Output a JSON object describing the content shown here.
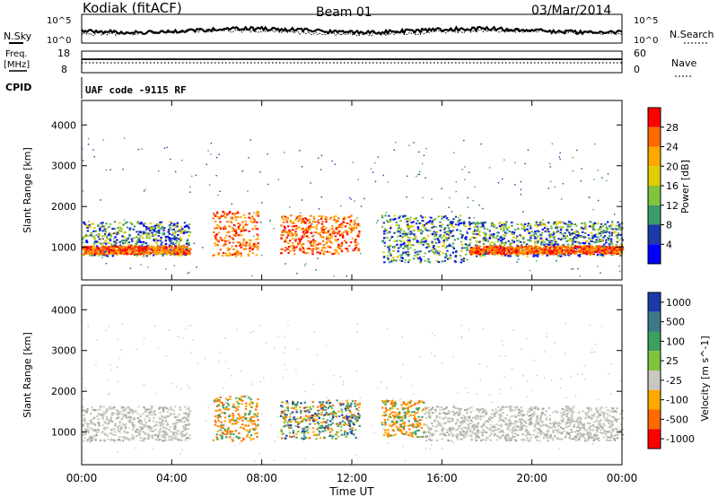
{
  "header": {
    "site": "Kodiak (fitACF)",
    "beam": "Beam 01",
    "date": "03/Mar/2014"
  },
  "top_panel": {
    "left_label": "N.Sky",
    "right_label": "N.Search",
    "left_ticks": [
      "10^5",
      "10^0"
    ],
    "right_ticks": [
      "10^5",
      "10^0"
    ]
  },
  "freq_panel": {
    "left_label_1": "Freq.",
    "left_label_2": "[MHz]",
    "right_label": "Nave",
    "left_ticks": [
      "18",
      "8"
    ],
    "right_ticks": [
      "60",
      "0"
    ]
  },
  "cpid": {
    "label": "CPID",
    "text": "UAF code -9115 RF"
  },
  "chart_data": [
    {
      "type": "heatmap",
      "ylabel": "Slant Range [km]",
      "xlabel": "Time UT",
      "x_ticks": [
        "00:00",
        "04:00",
        "08:00",
        "12:00",
        "16:00",
        "20:00",
        "00:00"
      ],
      "xlim": [
        0,
        24
      ],
      "y_ticks": [
        "1000",
        "2000",
        "3000",
        "4000"
      ],
      "ylim": [
        200,
        4600
      ],
      "colorbar": {
        "label": "Power [dB]",
        "ticks": [
          "28",
          "24",
          "20",
          "16",
          "12",
          "8",
          "4"
        ],
        "colors": [
          "#ff0000",
          "#ff6a00",
          "#ffa800",
          "#e0cc00",
          "#7fc43c",
          "#3c9a6a",
          "#1c3aa8",
          "#0000ff"
        ]
      },
      "regions": [
        {
          "t0": 0.0,
          "t1": 4.8,
          "r0": 800,
          "r1": 1650,
          "level": "mid"
        },
        {
          "t0": 0.0,
          "t1": 4.8,
          "r0": 850,
          "r1": 1050,
          "level": "high"
        },
        {
          "t0": 5.8,
          "t1": 7.8,
          "r0": 800,
          "r1": 1900,
          "level": "high"
        },
        {
          "t0": 8.8,
          "t1": 12.3,
          "r0": 850,
          "r1": 1800,
          "level": "high"
        },
        {
          "t0": 13.3,
          "t1": 17.2,
          "r0": 650,
          "r1": 1800,
          "level": "mid"
        },
        {
          "t0": 17.2,
          "t1": 24.0,
          "r0": 800,
          "r1": 1650,
          "level": "mid"
        },
        {
          "t0": 17.2,
          "t1": 24.0,
          "r0": 850,
          "r1": 1050,
          "level": "high"
        }
      ]
    },
    {
      "type": "heatmap",
      "ylabel": "Slant Range [km]",
      "xlabel": "Time UT",
      "x_ticks": [
        "00:00",
        "04:00",
        "08:00",
        "12:00",
        "16:00",
        "20:00",
        "00:00"
      ],
      "xlim": [
        0,
        24
      ],
      "y_ticks": [
        "1000",
        "2000",
        "3000",
        "4000"
      ],
      "ylim": [
        200,
        4600
      ],
      "colorbar": {
        "label": "Velocity [m s^-1]",
        "ticks": [
          "1000",
          "500",
          "100",
          "25",
          "-25",
          "-100",
          "-500",
          "-1000"
        ],
        "colors": [
          "#1c3aa8",
          "#3c7a8a",
          "#3ca060",
          "#7fc43c",
          "#c8c8c0",
          "#ffa800",
          "#ff6a00",
          "#ff0000"
        ]
      },
      "regions": [
        {
          "t0": 0.0,
          "t1": 4.8,
          "r0": 800,
          "r1": 1650,
          "level": "gray"
        },
        {
          "t0": 5.8,
          "t1": 7.8,
          "r0": 800,
          "r1": 1900,
          "level": "orange"
        },
        {
          "t0": 8.8,
          "t1": 12.3,
          "r0": 850,
          "r1": 1800,
          "level": "blue"
        },
        {
          "t0": 13.3,
          "t1": 15.2,
          "r0": 900,
          "r1": 1800,
          "level": "orange"
        },
        {
          "t0": 15.2,
          "t1": 24.0,
          "r0": 800,
          "r1": 1650,
          "level": "gray"
        }
      ]
    }
  ],
  "colors": {
    "axis": "#000000"
  }
}
